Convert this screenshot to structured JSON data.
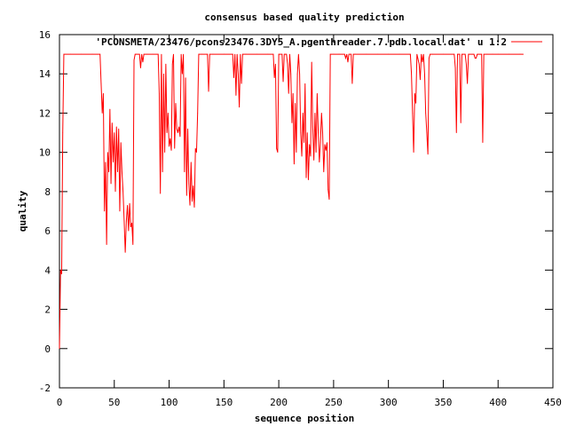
{
  "chart_data": {
    "type": "line",
    "title": "consensus based quality prediction",
    "xlabel": "sequence position",
    "ylabel": "quality",
    "xlim": [
      0,
      450
    ],
    "ylim": [
      -2,
      16
    ],
    "x_ticks": [
      0,
      50,
      100,
      150,
      200,
      250,
      300,
      350,
      400,
      450
    ],
    "y_ticks": [
      -2,
      0,
      2,
      4,
      6,
      8,
      10,
      12,
      14,
      16
    ],
    "grid": false,
    "legend_position": "top-right",
    "series_color": "#ff0000",
    "series": [
      {
        "name": "'PCONSMETA/23476/pcons23476.3DY5_A.pgenthreader.7.pdb.local.dat' u 1:2",
        "points": [
          [
            0,
            0
          ],
          [
            1,
            4
          ],
          [
            2,
            3.8
          ],
          [
            3,
            11
          ],
          [
            4,
            15
          ],
          [
            10,
            15
          ],
          [
            20,
            15
          ],
          [
            30,
            15
          ],
          [
            37,
            15
          ],
          [
            38,
            13.5
          ],
          [
            39,
            12
          ],
          [
            40,
            13
          ],
          [
            41,
            7
          ],
          [
            42,
            9.5
          ],
          [
            43,
            5.3
          ],
          [
            44,
            10
          ],
          [
            45,
            9
          ],
          [
            46,
            12.2
          ],
          [
            47,
            8.4
          ],
          [
            48,
            11.5
          ],
          [
            49,
            9.5
          ],
          [
            50,
            11
          ],
          [
            51,
            8
          ],
          [
            52,
            11.3
          ],
          [
            53,
            9
          ],
          [
            54,
            11.2
          ],
          [
            55,
            7
          ],
          [
            56,
            10.5
          ],
          [
            57,
            9
          ],
          [
            58,
            8
          ],
          [
            59,
            6.5
          ],
          [
            60,
            4.9
          ],
          [
            61,
            6.5
          ],
          [
            62,
            7.3
          ],
          [
            63,
            6
          ],
          [
            64,
            7.4
          ],
          [
            65,
            6.2
          ],
          [
            66,
            6.4
          ],
          [
            67,
            5.3
          ],
          [
            68,
            14.7
          ],
          [
            69,
            15
          ],
          [
            70,
            15
          ],
          [
            73,
            15
          ],
          [
            74,
            14.3
          ],
          [
            75,
            15
          ],
          [
            76,
            14.6
          ],
          [
            77,
            15
          ],
          [
            80,
            15
          ],
          [
            85,
            15
          ],
          [
            90,
            15
          ],
          [
            91,
            13
          ],
          [
            92,
            7.9
          ],
          [
            93,
            15
          ],
          [
            94,
            9
          ],
          [
            95,
            14
          ],
          [
            96,
            10
          ],
          [
            97,
            14.5
          ],
          [
            98,
            11
          ],
          [
            99,
            12
          ],
          [
            100,
            10.3
          ],
          [
            101,
            10.7
          ],
          [
            102,
            10.1
          ],
          [
            103,
            14.5
          ],
          [
            104,
            15
          ],
          [
            105,
            10.2
          ],
          [
            106,
            12.5
          ],
          [
            107,
            11.2
          ],
          [
            108,
            11
          ],
          [
            109,
            11.3
          ],
          [
            110,
            10.8
          ],
          [
            111,
            15
          ],
          [
            112,
            14
          ],
          [
            113,
            15
          ],
          [
            114,
            9
          ],
          [
            115,
            13.8
          ],
          [
            116,
            7.8
          ],
          [
            117,
            11.2
          ],
          [
            118,
            8.4
          ],
          [
            119,
            7.3
          ],
          [
            120,
            9.5
          ],
          [
            121,
            7.5
          ],
          [
            122,
            8.3
          ],
          [
            123,
            7.2
          ],
          [
            124,
            10.2
          ],
          [
            125,
            10
          ],
          [
            126,
            12
          ],
          [
            127,
            15
          ],
          [
            130,
            15
          ],
          [
            135,
            15
          ],
          [
            136,
            13.1
          ],
          [
            137,
            15
          ],
          [
            140,
            15
          ],
          [
            150,
            15
          ],
          [
            158,
            15
          ],
          [
            159,
            13.8
          ],
          [
            160,
            15
          ],
          [
            161,
            12.9
          ],
          [
            162,
            15
          ],
          [
            163,
            14
          ],
          [
            164,
            12.3
          ],
          [
            165,
            15
          ],
          [
            166,
            13.5
          ],
          [
            167,
            15
          ],
          [
            170,
            15
          ],
          [
            180,
            15
          ],
          [
            190,
            15
          ],
          [
            195,
            15
          ],
          [
            196,
            13.8
          ],
          [
            197,
            14.5
          ],
          [
            198,
            10.2
          ],
          [
            199,
            10
          ],
          [
            200,
            15
          ],
          [
            203,
            15
          ],
          [
            204,
            13.6
          ],
          [
            205,
            15
          ],
          [
            207,
            15
          ],
          [
            208,
            14.5
          ],
          [
            209,
            13
          ],
          [
            210,
            15
          ],
          [
            211,
            14
          ],
          [
            212,
            11.5
          ],
          [
            213,
            13
          ],
          [
            214,
            9.4
          ],
          [
            215,
            12.5
          ],
          [
            216,
            10
          ],
          [
            217,
            14
          ],
          [
            218,
            15
          ],
          [
            219,
            14
          ],
          [
            220,
            11
          ],
          [
            221,
            9.8
          ],
          [
            222,
            12
          ],
          [
            223,
            10.5
          ],
          [
            224,
            13.5
          ],
          [
            225,
            8.7
          ],
          [
            226,
            11
          ],
          [
            227,
            8.6
          ],
          [
            228,
            10.4
          ],
          [
            229,
            9.8
          ],
          [
            230,
            14.6
          ],
          [
            231,
            11.3
          ],
          [
            232,
            9.6
          ],
          [
            233,
            12
          ],
          [
            234,
            10
          ],
          [
            235,
            13
          ],
          [
            236,
            11
          ],
          [
            237,
            9.5
          ],
          [
            238,
            10.5
          ],
          [
            239,
            12
          ],
          [
            240,
            11
          ],
          [
            241,
            9
          ],
          [
            242,
            10.4
          ],
          [
            243,
            10.1
          ],
          [
            244,
            10.5
          ],
          [
            245,
            8.1
          ],
          [
            246,
            7.6
          ],
          [
            247,
            15
          ],
          [
            250,
            15
          ],
          [
            255,
            15
          ],
          [
            260,
            15
          ],
          [
            261,
            14.8
          ],
          [
            262,
            15
          ],
          [
            263,
            14.6
          ],
          [
            264,
            15
          ],
          [
            266,
            15
          ],
          [
            267,
            13.5
          ],
          [
            268,
            15
          ],
          [
            270,
            15
          ],
          [
            280,
            15
          ],
          [
            290,
            15
          ],
          [
            300,
            15
          ],
          [
            310,
            15
          ],
          [
            320,
            15
          ],
          [
            321,
            14
          ],
          [
            322,
            12
          ],
          [
            323,
            10
          ],
          [
            324,
            13
          ],
          [
            325,
            12.5
          ],
          [
            326,
            15
          ],
          [
            328,
            14.5
          ],
          [
            329,
            13.7
          ],
          [
            330,
            15
          ],
          [
            331,
            14.6
          ],
          [
            332,
            15
          ],
          [
            333,
            14
          ],
          [
            334,
            12
          ],
          [
            335,
            11
          ],
          [
            336,
            9.9
          ],
          [
            337,
            14.8
          ],
          [
            338,
            15
          ],
          [
            340,
            15
          ],
          [
            350,
            15
          ],
          [
            360,
            15
          ],
          [
            361,
            14.3
          ],
          [
            362,
            11
          ],
          [
            363,
            15
          ],
          [
            365,
            15
          ],
          [
            366,
            11.5
          ],
          [
            367,
            15
          ],
          [
            370,
            15
          ],
          [
            371,
            14.5
          ],
          [
            372,
            13.5
          ],
          [
            373,
            15
          ],
          [
            378,
            15
          ],
          [
            379,
            14.8
          ],
          [
            380,
            14.8
          ],
          [
            381,
            15
          ],
          [
            385,
            15
          ],
          [
            386,
            10.5
          ],
          [
            387,
            15
          ],
          [
            390,
            15
          ],
          [
            395,
            15
          ],
          [
            400,
            15
          ],
          [
            410,
            15
          ],
          [
            420,
            15
          ],
          [
            423,
            15
          ]
        ]
      }
    ]
  }
}
